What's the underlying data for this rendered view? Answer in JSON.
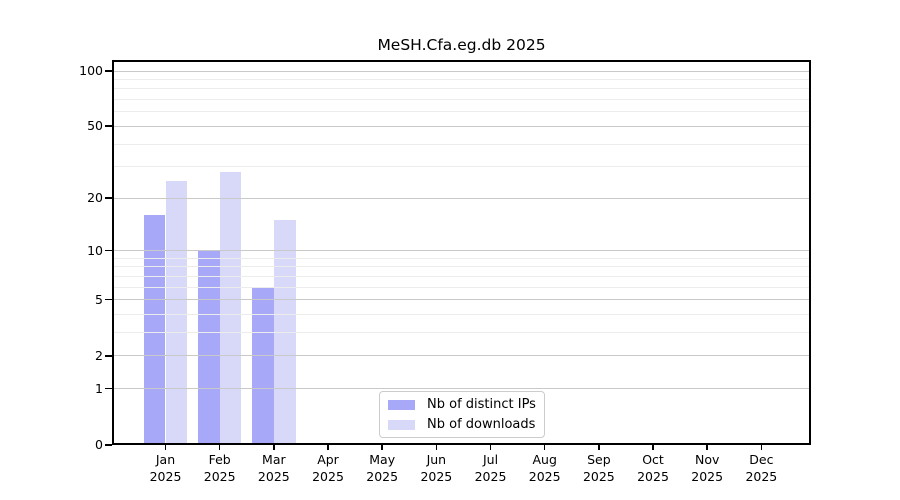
{
  "chart_data": {
    "type": "bar",
    "title": "MeSH.Cfa.eg.db 2025",
    "categories": [
      "Jan 2025",
      "Feb 2025",
      "Mar 2025",
      "Apr 2025",
      "May 2025",
      "Jun 2025",
      "Jul 2025",
      "Aug 2025",
      "Sep 2025",
      "Oct 2025",
      "Nov 2025",
      "Dec 2025"
    ],
    "series": [
      {
        "name": "Nb of distinct IPs",
        "color": "#a8a8f8",
        "values": [
          16,
          10,
          6,
          0,
          0,
          0,
          0,
          0,
          0,
          0,
          0,
          0
        ]
      },
      {
        "name": "Nb of downloads",
        "color": "#d8d8f8",
        "values": [
          25,
          28,
          15,
          0,
          0,
          0,
          0,
          0,
          0,
          0,
          0,
          0
        ]
      }
    ],
    "xlabel": "",
    "ylabel": "",
    "ylim": [
      0,
      100
    ],
    "yscale": "log1p",
    "y_major_ticks": [
      0,
      1,
      2,
      5,
      10,
      20,
      50,
      100
    ],
    "y_minor_gridlines": [
      3,
      4,
      6,
      7,
      8,
      9,
      30,
      40,
      60,
      70,
      80,
      90
    ],
    "grid": "horizontal",
    "legend_position": "lower center",
    "colors": {
      "major_grid": "#c9c9c9",
      "minor_grid": "#ececec",
      "axis": "#000000"
    }
  }
}
